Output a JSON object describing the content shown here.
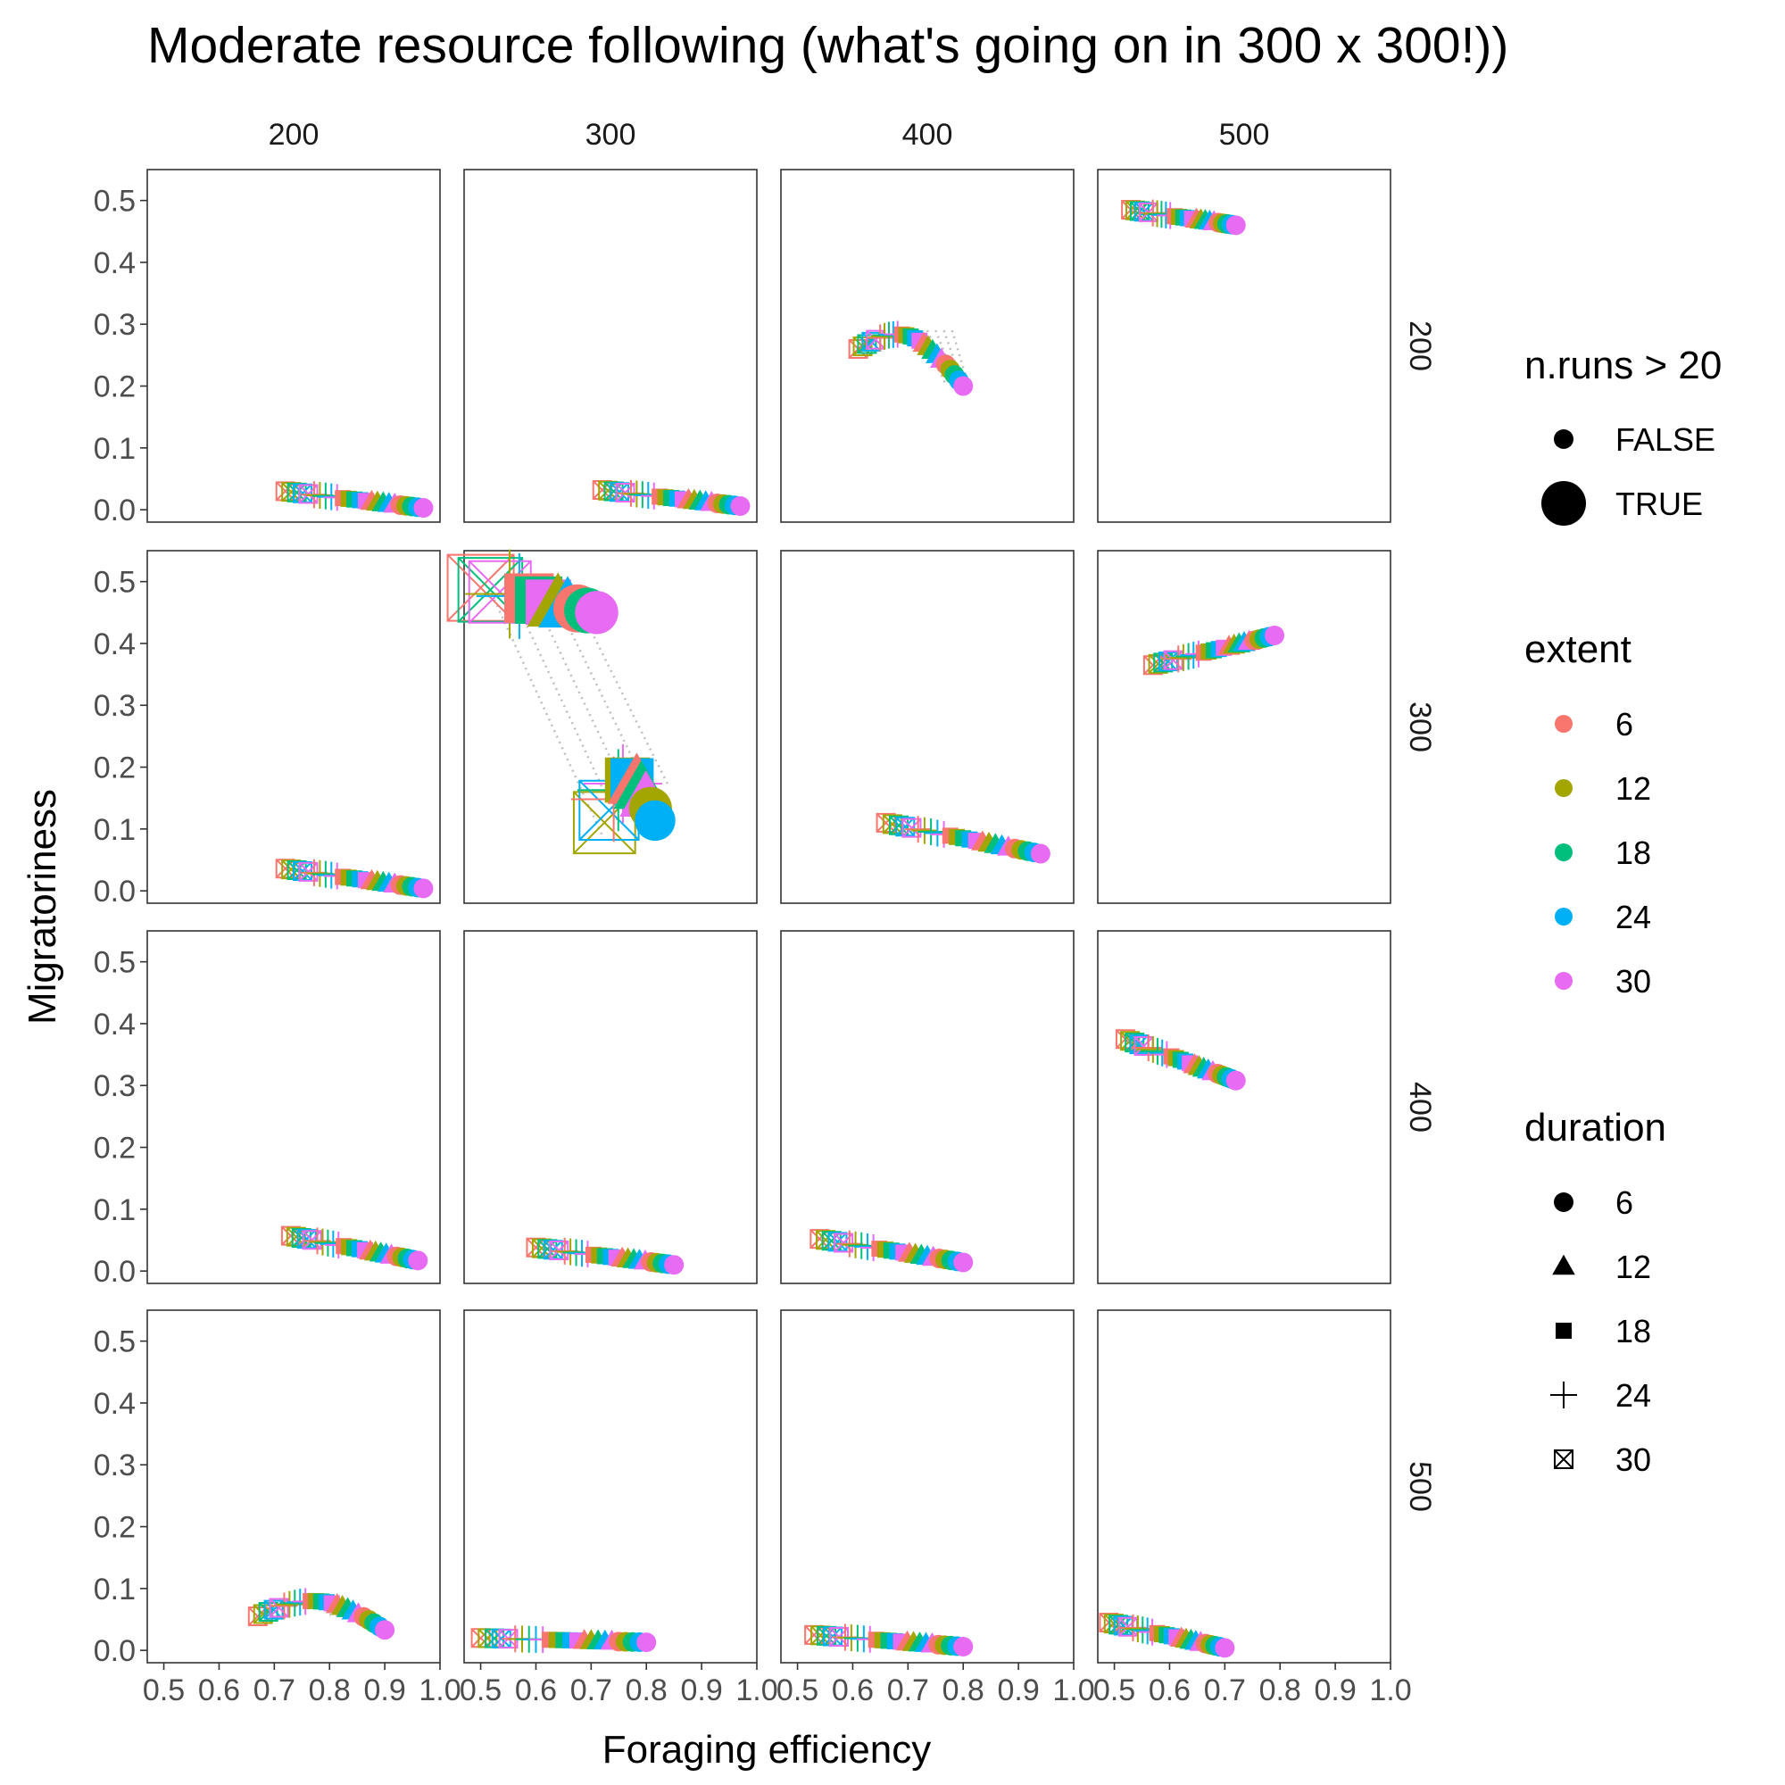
{
  "chart_data": {
    "type": "scatter",
    "title": "Moderate resource following (what's going on in 300 x 300!))",
    "xlabel": "Foraging efficiency",
    "ylabel": "Migratoriness",
    "xlim": [
      0.47,
      1.0
    ],
    "ylim": [
      -0.02,
      0.55
    ],
    "x_ticks": [
      "0.5",
      "0.6",
      "0.7",
      "0.8",
      "0.9",
      "1.0"
    ],
    "y_ticks": [
      "0.0",
      "0.1",
      "0.2",
      "0.3",
      "0.4",
      "0.5"
    ],
    "col_facets": [
      "200",
      "300",
      "400",
      "500"
    ],
    "row_facets": [
      "200",
      "300",
      "400",
      "500"
    ],
    "grid": false,
    "legend_position": "right",
    "legend": {
      "size": {
        "title": "n.runs > 20",
        "entries": [
          "FALSE",
          "TRUE"
        ]
      },
      "color": {
        "title": "extent",
        "entries": [
          "6",
          "12",
          "18",
          "24",
          "30"
        ]
      },
      "shape": {
        "title": "duration",
        "entries": [
          "6",
          "12",
          "18",
          "24",
          "30"
        ]
      }
    },
    "extent_colors": {
      "6": "#F8766D",
      "12": "#A3A500",
      "18": "#00BF7D",
      "24": "#00B0F6",
      "30": "#E76BF3"
    },
    "duration_shapes": {
      "6": "circle",
      "12": "triangle",
      "18": "square",
      "24": "plus",
      "30": "boxed-x"
    },
    "panels": [
      {
        "row": 0,
        "col": 0,
        "start": [
          0.72,
          0.03
        ],
        "end": [
          0.97,
          0.003
        ],
        "large": false
      },
      {
        "row": 0,
        "col": 1,
        "start": [
          0.72,
          0.032
        ],
        "end": [
          0.97,
          0.006
        ],
        "large": false
      },
      {
        "row": 0,
        "col": 2,
        "start": [
          0.61,
          0.26
        ],
        "end": [
          0.8,
          0.2
        ],
        "large": false,
        "curl": true
      },
      {
        "row": 0,
        "col": 3,
        "start": [
          0.53,
          0.485
        ],
        "end": [
          0.72,
          0.46
        ],
        "large": false
      },
      {
        "row": 1,
        "col": 0,
        "start": [
          0.72,
          0.036
        ],
        "end": [
          0.97,
          0.004
        ],
        "large": false
      },
      {
        "row": 1,
        "col": 1,
        "start": [
          0.5,
          0.49
        ],
        "end": [
          0.71,
          0.45
        ],
        "large": true,
        "split": true
      },
      {
        "row": 1,
        "col": 2,
        "start": [
          0.66,
          0.11
        ],
        "end": [
          0.94,
          0.06
        ],
        "large": false
      },
      {
        "row": 1,
        "col": 3,
        "start": [
          0.57,
          0.365
        ],
        "end": [
          0.79,
          0.413
        ],
        "large": false
      },
      {
        "row": 2,
        "col": 0,
        "start": [
          0.73,
          0.057
        ],
        "end": [
          0.96,
          0.017
        ],
        "large": false
      },
      {
        "row": 2,
        "col": 1,
        "start": [
          0.6,
          0.038
        ],
        "end": [
          0.85,
          0.01
        ],
        "large": false
      },
      {
        "row": 2,
        "col": 2,
        "start": [
          0.54,
          0.052
        ],
        "end": [
          0.8,
          0.014
        ],
        "large": false
      },
      {
        "row": 2,
        "col": 3,
        "start": [
          0.52,
          0.375
        ],
        "end": [
          0.72,
          0.308
        ],
        "large": false
      },
      {
        "row": 3,
        "col": 0,
        "start": [
          0.67,
          0.055
        ],
        "end": [
          0.9,
          0.033
        ],
        "large": false,
        "bump": true
      },
      {
        "row": 3,
        "col": 1,
        "start": [
          0.5,
          0.02
        ],
        "end": [
          0.8,
          0.013
        ],
        "large": false
      },
      {
        "row": 3,
        "col": 2,
        "start": [
          0.53,
          0.025
        ],
        "end": [
          0.8,
          0.006
        ],
        "large": false
      },
      {
        "row": 3,
        "col": 3,
        "start": [
          0.49,
          0.045
        ],
        "end": [
          0.7,
          0.004
        ],
        "large": false
      }
    ]
  }
}
